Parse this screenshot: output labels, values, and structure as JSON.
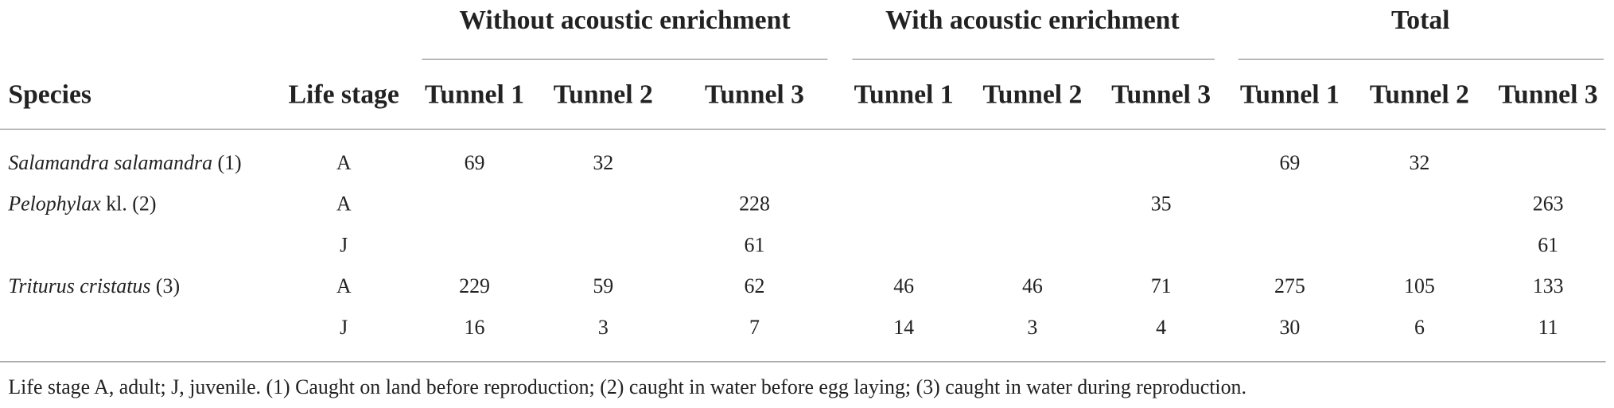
{
  "table": {
    "groups": [
      "Without acoustic enrichment",
      "With acoustic enrichment",
      "Total"
    ],
    "columns": [
      "Species",
      "Life stage",
      "Tunnel 1",
      "Tunnel 2",
      "Tunnel 3",
      "Tunnel 1",
      "Tunnel 2",
      "Tunnel 3",
      "Tunnel 1",
      "Tunnel 2",
      "Tunnel 3"
    ],
    "rows": [
      {
        "species": {
          "italic": "Salamandra salamandra",
          "rest": " (1)"
        },
        "stage": "A",
        "cells": [
          "69",
          "32",
          null,
          null,
          null,
          null,
          "69",
          "32",
          null
        ]
      },
      {
        "species": {
          "italic": "Pelophylax",
          "rest": " kl. (2)"
        },
        "stage": "A",
        "cells": [
          null,
          null,
          "228",
          null,
          null,
          "35",
          null,
          null,
          "263"
        ]
      },
      {
        "species": null,
        "stage": "J",
        "cells": [
          null,
          null,
          "61",
          null,
          null,
          null,
          null,
          null,
          "61"
        ]
      },
      {
        "species": {
          "italic": "Triturus cristatus",
          "rest": " (3)"
        },
        "stage": "A",
        "cells": [
          "229",
          "59",
          "62",
          "46",
          "46",
          "71",
          "275",
          "105",
          "133"
        ]
      },
      {
        "species": null,
        "stage": "J",
        "cells": [
          "16",
          "3",
          "7",
          "14",
          "3",
          "4",
          "30",
          "6",
          "11"
        ]
      }
    ],
    "footnote": "Life stage A, adult; J, juvenile. (1) Caught on land before reproduction; (2) caught in water before egg laying; (3) caught in water during reproduction."
  }
}
